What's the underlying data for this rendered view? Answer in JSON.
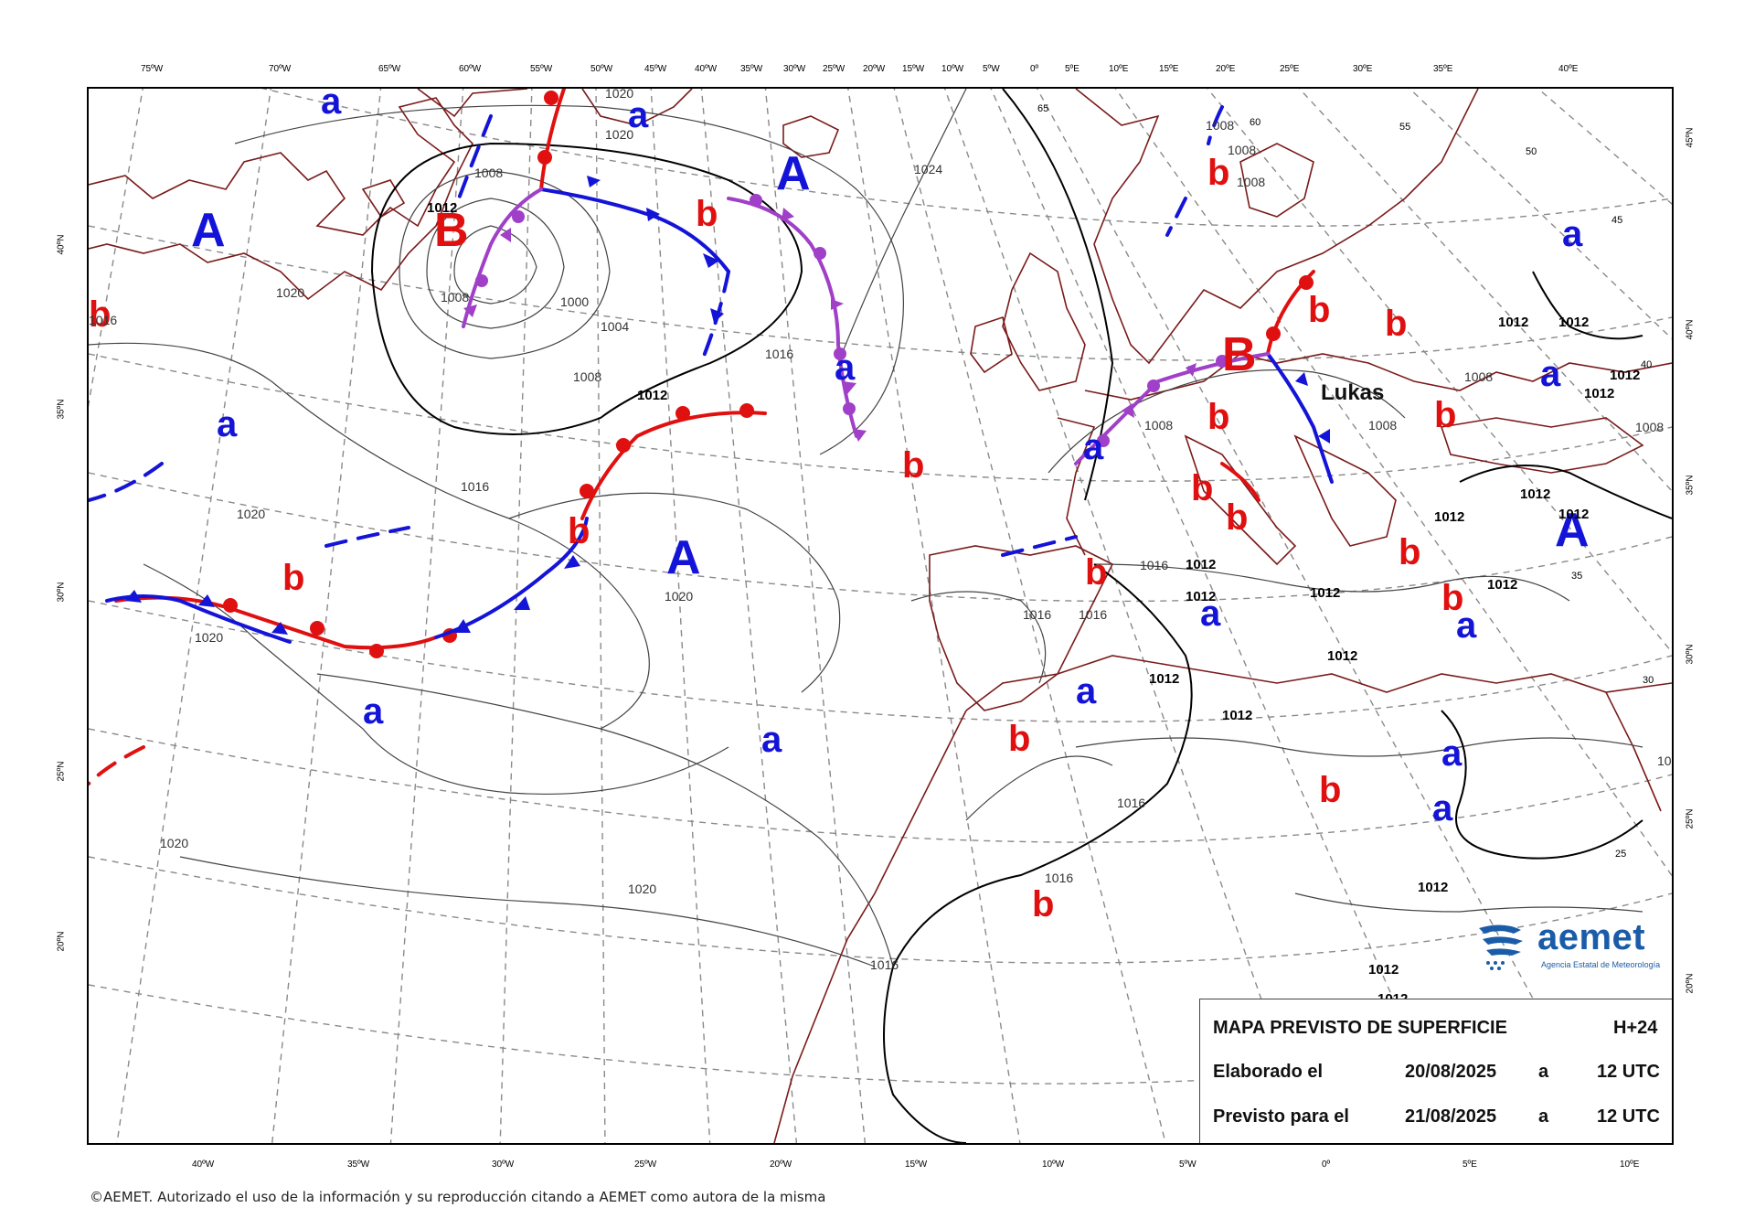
{
  "top_lon_labels": [
    "75ºW",
    "70ºW",
    "65ºW",
    "60ºW",
    "55ºW",
    "50ºW",
    "45ºW",
    "40ºW",
    "35ºW",
    "30ºW",
    "25ºW",
    "20ºW",
    "15ºW",
    "10ºW",
    "5ºW",
    "0º",
    "5ºE",
    "10ºE",
    "15ºE",
    "20ºE",
    "25ºE",
    "30ºE",
    "35ºE",
    "40ºE"
  ],
  "bottom_lon_labels": [
    "40ºW",
    "35ºW",
    "30ºW",
    "25ºW",
    "20ºW",
    "15ºW",
    "10ºW",
    "5ºW",
    "0º",
    "5ºE",
    "10ºE"
  ],
  "left_lat_labels": [
    "40ºN",
    "35ºN",
    "30ºN",
    "25ºN",
    "20ºN"
  ],
  "right_lat_labels": [
    "45ºN",
    "40ºN",
    "35ºN",
    "30ºN",
    "25ºN",
    "20ºN"
  ],
  "interior_lat_labels": [
    "65",
    "60",
    "55",
    "50",
    "45",
    "40",
    "35",
    "30",
    "25"
  ],
  "pressure_centers": [
    {
      "kind": "high",
      "letter": "A"
    },
    {
      "kind": "high",
      "letter": "A"
    },
    {
      "kind": "high",
      "letter": "A"
    },
    {
      "kind": "high",
      "letter": "A"
    },
    {
      "kind": "high-small",
      "letter": "a"
    },
    {
      "kind": "high-small",
      "letter": "a"
    },
    {
      "kind": "high-small",
      "letter": "a"
    },
    {
      "kind": "high-small",
      "letter": "a"
    },
    {
      "kind": "high-small",
      "letter": "a"
    },
    {
      "kind": "high-small",
      "letter": "a"
    },
    {
      "kind": "high-small",
      "letter": "a"
    },
    {
      "kind": "high-small",
      "letter": "a"
    },
    {
      "kind": "high-small",
      "letter": "a"
    },
    {
      "kind": "high-small",
      "letter": "a"
    },
    {
      "kind": "high-small",
      "letter": "a"
    },
    {
      "kind": "high-small",
      "letter": "a"
    },
    {
      "kind": "high-small",
      "letter": "a"
    },
    {
      "kind": "high-small",
      "letter": "a"
    },
    {
      "kind": "low",
      "letter": "B"
    },
    {
      "kind": "low",
      "letter": "B"
    },
    {
      "kind": "low-small",
      "letter": "b"
    },
    {
      "kind": "low-small",
      "letter": "b"
    },
    {
      "kind": "low-small",
      "letter": "b"
    },
    {
      "kind": "low-small",
      "letter": "b"
    },
    {
      "kind": "low-small",
      "letter": "b"
    },
    {
      "kind": "low-small",
      "letter": "b"
    },
    {
      "kind": "low-small",
      "letter": "b"
    },
    {
      "kind": "low-small",
      "letter": "b"
    },
    {
      "kind": "low-small",
      "letter": "b"
    },
    {
      "kind": "low-small",
      "letter": "b"
    },
    {
      "kind": "low-small",
      "letter": "b"
    },
    {
      "kind": "low-small",
      "letter": "b"
    },
    {
      "kind": "low-small",
      "letter": "b"
    },
    {
      "kind": "low-small",
      "letter": "b"
    },
    {
      "kind": "low-small",
      "letter": "b"
    },
    {
      "kind": "low-small",
      "letter": "b"
    },
    {
      "kind": "low-small",
      "letter": "b"
    },
    {
      "kind": "low-small",
      "letter": "b"
    }
  ],
  "storm_name": "Lukas",
  "isobar_labels": [
    "1020",
    "1020",
    "1020",
    "1020",
    "1020",
    "1020",
    "1020",
    "1020",
    "1024",
    "1016",
    "1016",
    "1016",
    "1016",
    "1016",
    "1016",
    "1016",
    "1016",
    "1016",
    "1012",
    "1012",
    "1012",
    "1012",
    "1012",
    "1012",
    "1012",
    "1012",
    "1012",
    "1012",
    "1012",
    "1012",
    "1012",
    "1012",
    "1012",
    "1012",
    "1012",
    "1012",
    "1012",
    "1008",
    "1008",
    "1008",
    "1008",
    "1008",
    "1008",
    "1008",
    "1008",
    "1008",
    "1004",
    "1004",
    "1000",
    "1008",
    "1008",
    "10"
  ],
  "legend": {
    "title": "MAPA PREVISTO DE SUPERFICIE",
    "lead_time": "H+24",
    "elaborated_label": "Elaborado el",
    "elaborated_date": "20/08/2025",
    "elaborated_at": "a",
    "elaborated_time": "12 UTC",
    "valid_label": "Previsto para el",
    "valid_date": "21/08/2025",
    "valid_at": "a",
    "valid_time": "12 UTC"
  },
  "logo": {
    "name": "aemet",
    "subtitle": "Agencia Estatal de Meteorología"
  },
  "footer_text": "©AEMET. Autorizado el uso de la información y su reproducción citando a AEMET como autora de la misma",
  "colors": {
    "high": "#1414d8",
    "low": "#e01010",
    "warm_front": "#e01010",
    "cold_front": "#1414d8",
    "occluded_front": "#a040c8",
    "coast": "#7a1a1a",
    "grid": "#888888",
    "isobar": "#444444"
  }
}
